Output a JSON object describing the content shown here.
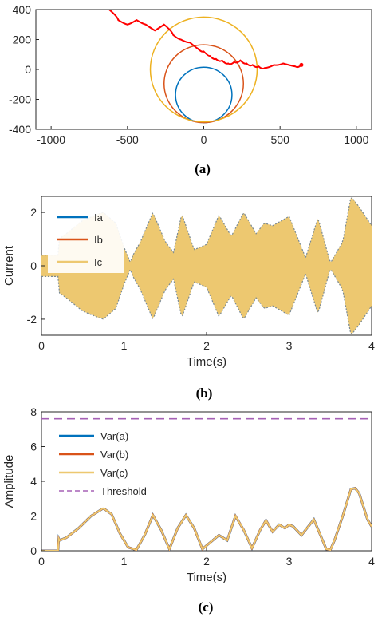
{
  "figure": {
    "captions": [
      "(a)",
      "(b)",
      "(c)"
    ]
  },
  "chart_data": [
    {
      "panel": "(a)",
      "type": "line",
      "title": "",
      "xlabel": "",
      "ylabel": "",
      "xlim": [
        -1100,
        1100
      ],
      "ylim": [
        -400,
        400
      ],
      "xticks": [
        -1000,
        -500,
        0,
        500,
        1000
      ],
      "yticks": [
        -400,
        -200,
        0,
        200,
        400
      ],
      "xtick_labels": [
        "-1000",
        "-500",
        "0",
        "500",
        "1000"
      ],
      "ytick_labels": [
        "-400",
        "-200",
        "0",
        "200",
        "400"
      ],
      "grid": false,
      "circles": [
        {
          "cx": 0,
          "cy": -170,
          "r": 185,
          "color": "#0072BD"
        },
        {
          "cx": 0,
          "cy": -95,
          "r": 260,
          "color": "#D95319"
        },
        {
          "cx": 0,
          "cy": 0,
          "r": 350,
          "color": "#EDB120"
        }
      ],
      "trajectory": {
        "color": "#FF0000",
        "points": [
          [
            -620,
            400
          ],
          [
            -560,
            330
          ],
          [
            -500,
            300
          ],
          [
            -440,
            330
          ],
          [
            -380,
            300
          ],
          [
            -320,
            260
          ],
          [
            -260,
            300
          ],
          [
            -200,
            230
          ],
          [
            -150,
            200
          ],
          [
            -90,
            180
          ],
          [
            -40,
            140
          ],
          [
            0,
            120
          ],
          [
            40,
            90
          ],
          [
            80,
            70
          ],
          [
            120,
            60
          ],
          [
            160,
            40
          ],
          [
            200,
            50
          ],
          [
            240,
            60
          ],
          [
            280,
            40
          ],
          [
            320,
            30
          ],
          [
            360,
            20
          ],
          [
            400,
            10
          ],
          [
            460,
            30
          ],
          [
            520,
            40
          ],
          [
            600,
            20
          ],
          [
            640,
            30
          ]
        ]
      }
    },
    {
      "panel": "(b)",
      "type": "area",
      "title": "",
      "xlabel": "Time(s)",
      "ylabel": "Current",
      "xlim": [
        0,
        4
      ],
      "ylim": [
        -2.6,
        2.6
      ],
      "xticks": [
        0,
        1,
        2,
        3,
        4
      ],
      "yticks": [
        -2,
        0,
        2
      ],
      "xtick_labels": [
        "0",
        "1",
        "2",
        "3",
        "4"
      ],
      "ytick_labels": [
        "-2",
        "0",
        "2"
      ],
      "grid": false,
      "legend_position": "top-left",
      "series": [
        {
          "name": "Ia",
          "color": "#0072BD"
        },
        {
          "name": "Ib",
          "color": "#D95319"
        },
        {
          "name": "Ic",
          "color": "#EDC870"
        }
      ],
      "envelope_time": [
        0,
        0.2,
        0.21,
        0.3,
        0.5,
        0.7,
        0.75,
        0.9,
        1.0,
        1.08,
        1.1,
        1.2,
        1.35,
        1.5,
        1.6,
        1.7,
        1.85,
        2.0,
        2.15,
        2.3,
        2.45,
        2.6,
        2.7,
        2.8,
        3.0,
        3.2,
        3.35,
        3.5,
        3.65,
        3.75,
        3.85,
        4.0
      ],
      "envelope_amplitude": [
        0.4,
        0.4,
        1.0,
        1.2,
        1.7,
        1.95,
        2.0,
        1.6,
        0.7,
        0.1,
        0.35,
        0.9,
        2.0,
        0.9,
        0.5,
        1.95,
        0.6,
        0.8,
        1.9,
        1.1,
        2.0,
        1.2,
        1.6,
        1.5,
        1.85,
        0.3,
        1.8,
        0.1,
        0.9,
        2.6,
        2.2,
        1.5
      ]
    },
    {
      "panel": "(c)",
      "type": "line",
      "title": "",
      "xlabel": "Time(s)",
      "ylabel": "Amplitude",
      "xlim": [
        0,
        4
      ],
      "ylim": [
        0,
        8
      ],
      "xticks": [
        0,
        1,
        2,
        3,
        4
      ],
      "yticks": [
        0,
        2,
        4,
        6,
        8
      ],
      "xtick_labels": [
        "0",
        "1",
        "2",
        "3",
        "4"
      ],
      "ytick_labels": [
        "0",
        "2",
        "4",
        "6",
        "8"
      ],
      "grid": false,
      "legend_position": "top-left",
      "threshold": 7.6,
      "series": [
        {
          "name": "Var(a)",
          "color": "#0072BD"
        },
        {
          "name": "Var(b)",
          "color": "#D95319"
        },
        {
          "name": "Var(c)",
          "color": "#EDC870"
        },
        {
          "name": "Threshold",
          "color": "#A560B5",
          "dashed": true
        }
      ],
      "x": [
        0,
        0.2,
        0.21,
        0.22,
        0.3,
        0.45,
        0.6,
        0.75,
        0.85,
        0.95,
        1.05,
        1.15,
        1.25,
        1.35,
        1.45,
        1.55,
        1.65,
        1.75,
        1.85,
        1.95,
        2.05,
        2.15,
        2.25,
        2.35,
        2.45,
        2.55,
        2.65,
        2.72,
        2.8,
        2.88,
        2.95,
        3.0,
        3.05,
        3.15,
        3.3,
        3.45,
        3.5,
        3.55,
        3.65,
        3.75,
        3.8,
        3.85,
        3.95,
        4.0
      ],
      "y": [
        0.0,
        0.0,
        0.7,
        0.6,
        0.75,
        1.3,
        2.0,
        2.45,
        2.1,
        1.0,
        0.2,
        0.05,
        0.9,
        2.05,
        1.2,
        0.1,
        1.3,
        2.05,
        1.3,
        0.1,
        0.5,
        0.9,
        0.6,
        2.0,
        1.2,
        0.15,
        1.2,
        1.75,
        1.1,
        1.5,
        1.3,
        1.5,
        1.4,
        0.9,
        1.8,
        0.1,
        0.05,
        0.6,
        2.0,
        3.55,
        3.6,
        3.3,
        1.8,
        1.4
      ]
    }
  ]
}
